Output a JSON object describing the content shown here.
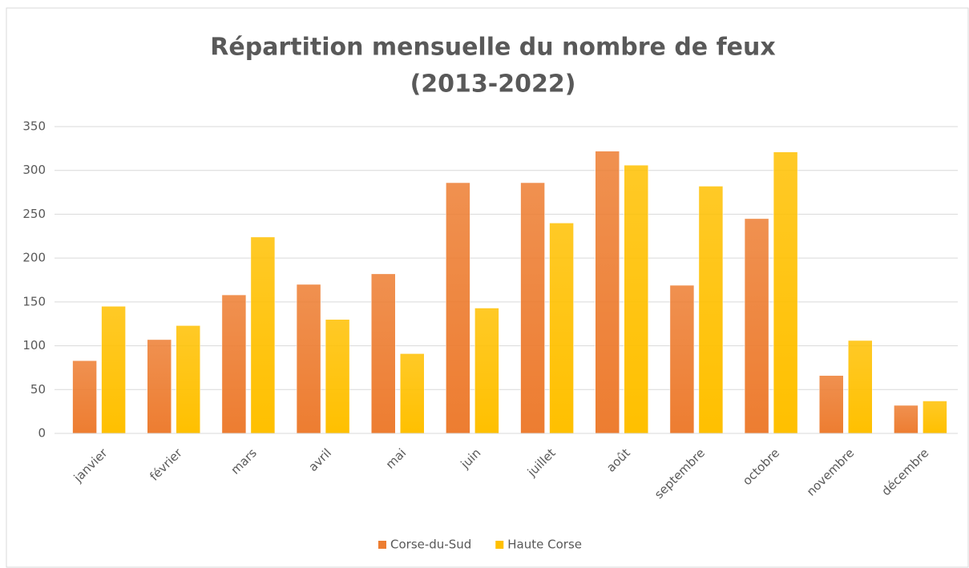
{
  "chart_data": {
    "type": "bar",
    "title": "Répartition mensuelle du nombre de feux",
    "subtitle": "(2013-2022)",
    "categories": [
      "janvier",
      "février",
      "mars",
      "avril",
      "mai",
      "juin",
      "juillet",
      "août",
      "septembre",
      "octobre",
      "novembre",
      "décembre"
    ],
    "series": [
      {
        "name": "Corse-du-Sud",
        "color": "#ed7d31",
        "values": [
          83,
          107,
          158,
          170,
          182,
          286,
          286,
          322,
          169,
          245,
          66,
          32
        ]
      },
      {
        "name": "Haute Corse",
        "color": "#ffc000",
        "values": [
          145,
          123,
          224,
          130,
          91,
          143,
          240,
          306,
          282,
          321,
          106,
          37
        ]
      }
    ],
    "ylim": [
      0,
      350
    ],
    "yticks": [
      0,
      50,
      100,
      150,
      200,
      250,
      300,
      350
    ],
    "grid": true,
    "legend": "bottom"
  }
}
